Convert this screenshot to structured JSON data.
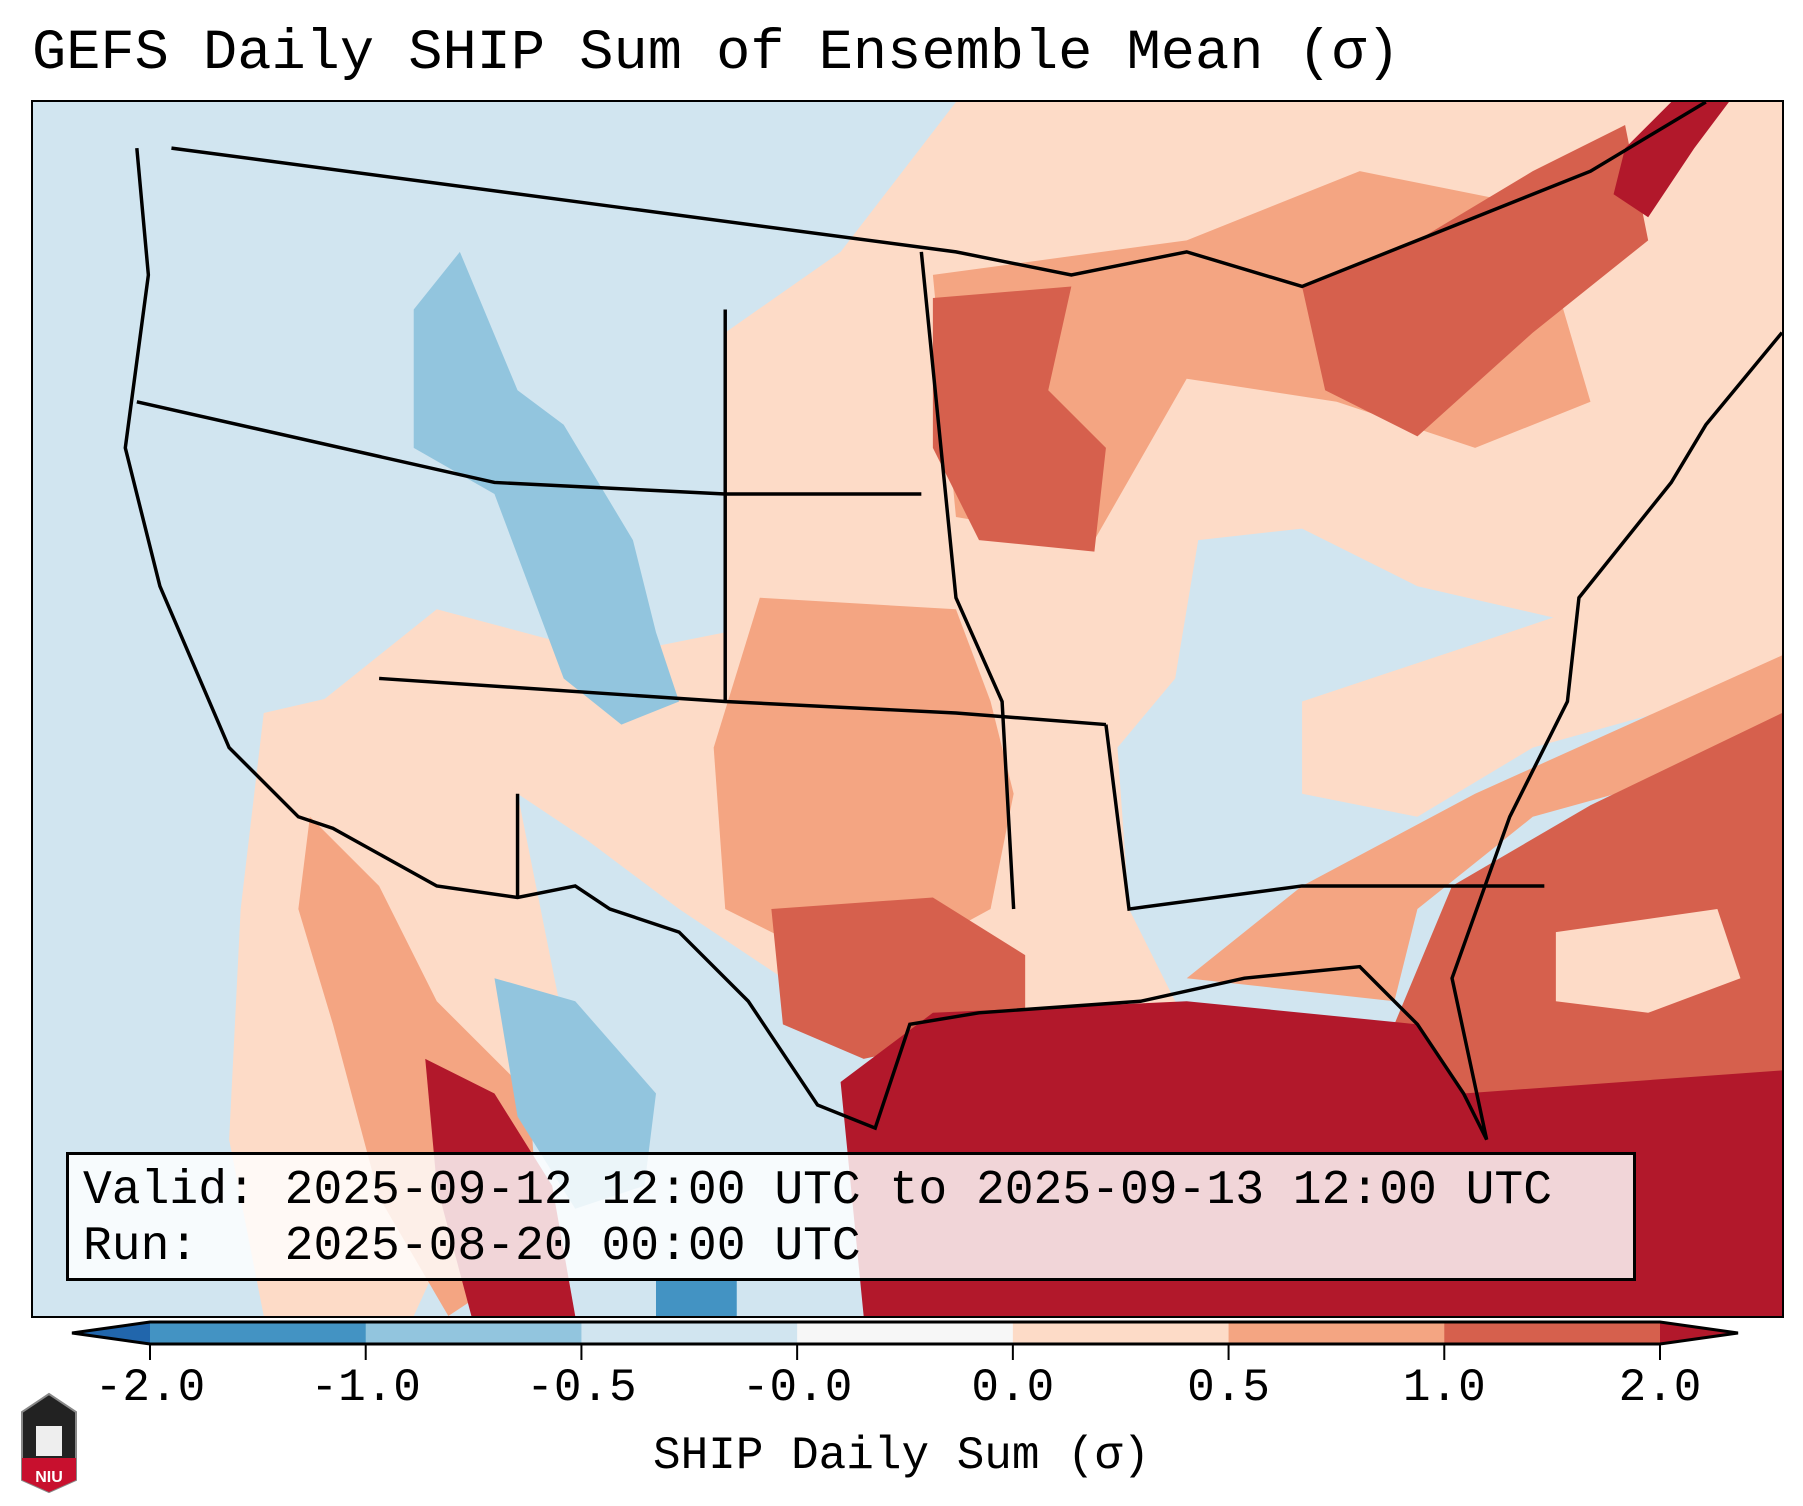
{
  "title": "GEFS Daily SHIP Sum of Ensemble Mean (σ)",
  "info": {
    "valid_line": "Valid: 2025-09-12 12:00 UTC to 2025-09-13 12:00 UTC",
    "run_line": "Run:   2025-08-20 00:00 UTC"
  },
  "logo_text": "NIU",
  "chart_data": {
    "type": "heatmap",
    "title": "GEFS Daily SHIP Sum of Ensemble Mean (σ)",
    "region": "Continental United States",
    "colorbar": {
      "label": "SHIP Daily Sum (σ)",
      "tick_labels": [
        "-2.0",
        "-1.0",
        "-0.5",
        "-0.0",
        "0.0",
        "0.5",
        "1.0",
        "2.0"
      ],
      "bins": [
        {
          "range": "< -2.0",
          "color": "#2166ac"
        },
        {
          "range": "-2.0 to -1.0",
          "color": "#4393c3"
        },
        {
          "range": "-1.0 to -0.5",
          "color": "#92c5de"
        },
        {
          "range": "-0.5 to -0.0",
          "color": "#d1e5f0"
        },
        {
          "range": "-0.0 to 0.0",
          "color": "#f7f7f7"
        },
        {
          "range": "0.0 to 0.5",
          "color": "#fddbc7"
        },
        {
          "range": "0.5 to 1.0",
          "color": "#f4a582"
        },
        {
          "range": "1.0 to 2.0",
          "color": "#d6604d"
        },
        {
          "range": "> 2.0",
          "color": "#b2182b"
        }
      ],
      "extend": "both"
    },
    "summary": {
      "gulf_of_mexico": "> 2.0",
      "southeast_atlantic": "1.0 to 2.0",
      "upper_midwest": "0.5 to 2.0",
      "great_plains": "0.0 to 1.0",
      "rockies_west": "-1.0 to 0.0",
      "ohio_valley_southeast": "-0.5 to 0.0"
    }
  }
}
